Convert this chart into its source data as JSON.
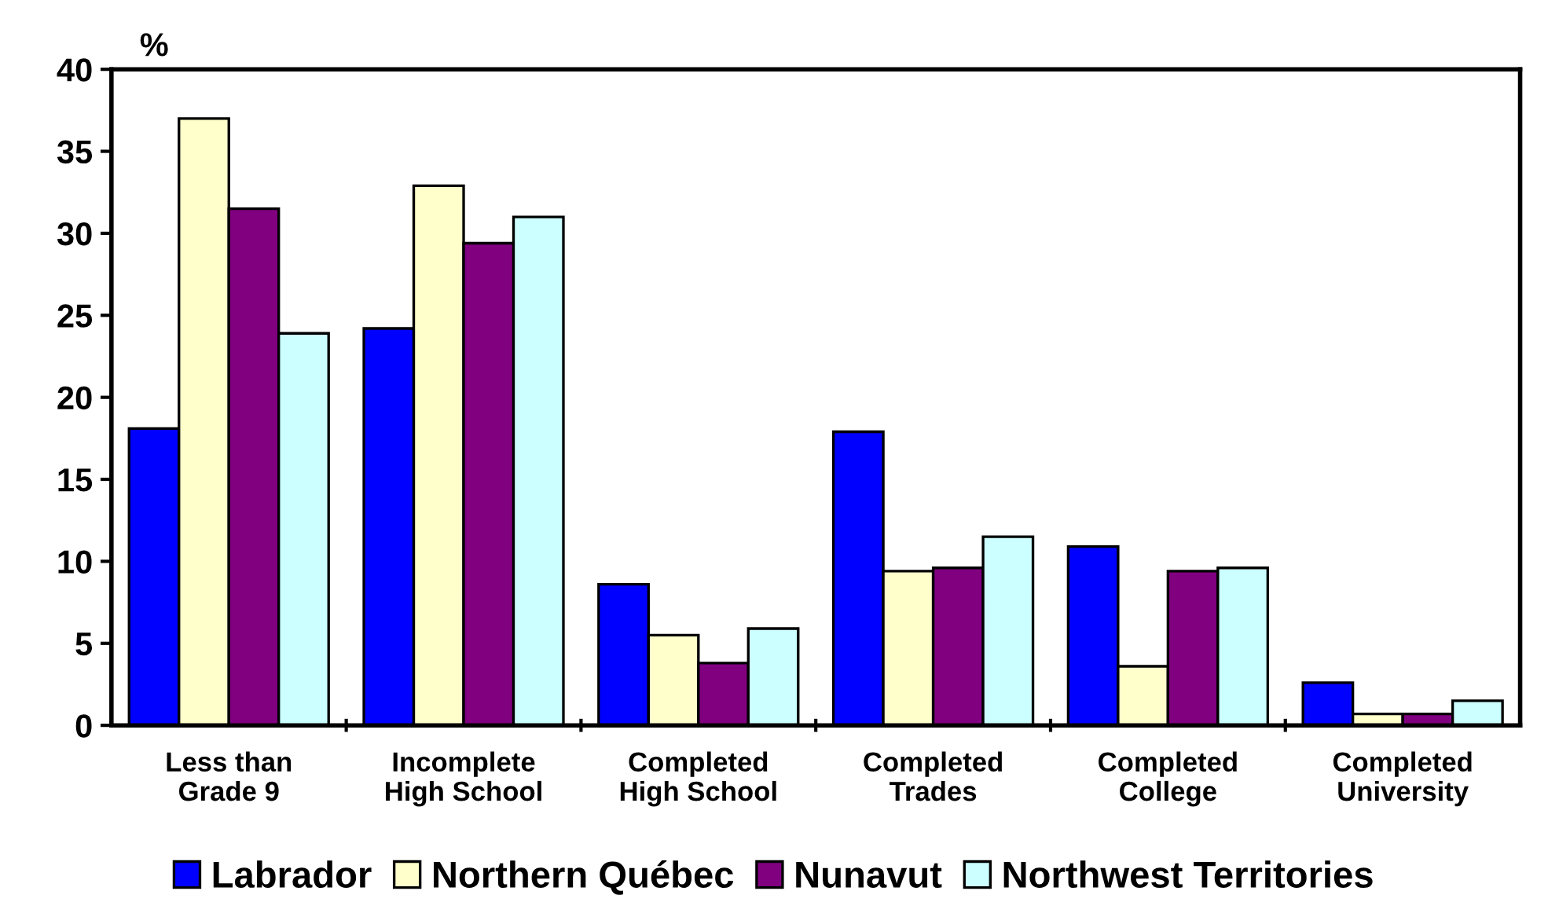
{
  "chart_data": {
    "type": "bar",
    "ylabel": "%",
    "categories": [
      "Less than\nGrade 9",
      "Incomplete\nHigh School",
      "Completed\nHigh School",
      "Completed\nTrades",
      "Completed\nCollege",
      "Completed\nUniversity"
    ],
    "series": [
      {
        "name": "Labrador",
        "color": "#0000ff",
        "values": [
          18.1,
          24.2,
          8.6,
          17.9,
          10.9,
          2.6
        ]
      },
      {
        "name": "Northern Québec",
        "color": "#ffffcc",
        "values": [
          37.0,
          32.9,
          5.5,
          9.4,
          3.6,
          0.7
        ]
      },
      {
        "name": "Nunavut",
        "color": "#800080",
        "values": [
          31.5,
          29.4,
          3.8,
          9.6,
          9.4,
          0.7
        ]
      },
      {
        "name": "Northwest Territories",
        "color": "#ccffff",
        "values": [
          23.9,
          31.0,
          5.9,
          11.5,
          9.6,
          1.5
        ]
      }
    ],
    "ylim": [
      0,
      40
    ],
    "yticks": [
      0,
      5,
      10,
      15,
      20,
      25,
      30,
      35,
      40
    ],
    "grid": false,
    "legend": "bottom"
  }
}
